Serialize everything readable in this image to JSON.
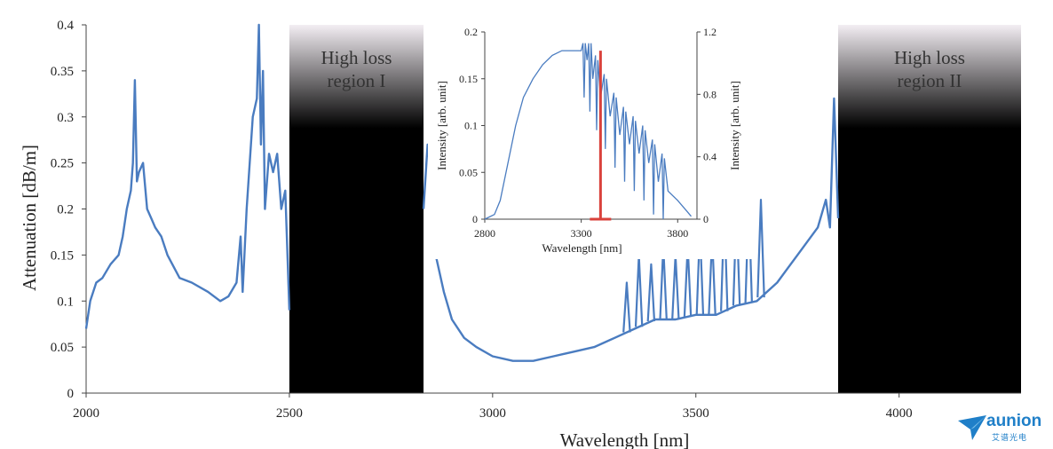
{
  "chart_data": [
    {
      "type": "line",
      "title": "",
      "xlabel": "Wavelength [nm]",
      "ylabel": "Attenuation [dB/m]",
      "xlim": [
        2000,
        4300
      ],
      "ylim": [
        0,
        0.4
      ],
      "xticks": [
        "2000",
        "2500",
        "3000",
        "3500",
        "4000"
      ],
      "yticks": [
        "0",
        "0.05",
        "0.1",
        "0.15",
        "0.2",
        "0.25",
        "0.3",
        "0.35",
        "0.4"
      ],
      "grid": false,
      "color": "#4a7cc0",
      "regions": [
        {
          "label_line1": "High loss",
          "label_line2": "region I",
          "x": [
            2500,
            2830
          ]
        },
        {
          "label_line1": "High loss",
          "label_line2": "region II",
          "x": [
            3850,
            4300
          ]
        }
      ],
      "series": [
        {
          "x": [
            2000,
            2010,
            2025,
            2040,
            2060,
            2080,
            2090,
            2100,
            2110,
            2115,
            2120,
            2125,
            2130,
            2140,
            2150,
            2160,
            2170,
            2185,
            2200,
            2230,
            2260,
            2300,
            2330,
            2350,
            2370,
            2380,
            2385,
            2395,
            2410,
            2420,
            2425,
            2430,
            2435,
            2440,
            2450,
            2460,
            2470,
            2480,
            2490,
            2500
          ],
          "y": [
            0.07,
            0.1,
            0.12,
            0.125,
            0.14,
            0.15,
            0.17,
            0.2,
            0.22,
            0.25,
            0.34,
            0.23,
            0.24,
            0.25,
            0.2,
            0.19,
            0.18,
            0.17,
            0.15,
            0.125,
            0.12,
            0.11,
            0.1,
            0.105,
            0.12,
            0.17,
            0.11,
            0.2,
            0.3,
            0.32,
            0.4,
            0.27,
            0.35,
            0.2,
            0.26,
            0.24,
            0.26,
            0.2,
            0.22,
            0.09
          ]
        },
        {
          "x": [
            2830,
            2840,
            2845,
            2850,
            2860,
            2880,
            2900,
            2930,
            2960,
            3000,
            3050,
            3100,
            3150,
            3200,
            3250,
            3300,
            3350,
            3400,
            3450,
            3500,
            3550,
            3600,
            3650,
            3700,
            3750,
            3800,
            3820,
            3830,
            3840,
            3850
          ],
          "y": [
            0.2,
            0.27,
            0.25,
            0.2,
            0.15,
            0.11,
            0.08,
            0.06,
            0.05,
            0.04,
            0.035,
            0.035,
            0.04,
            0.045,
            0.05,
            0.06,
            0.07,
            0.08,
            0.08,
            0.085,
            0.085,
            0.095,
            0.1,
            0.12,
            0.15,
            0.18,
            0.21,
            0.18,
            0.32,
            0.19
          ]
        }
      ],
      "oscillation_peaks": {
        "x": [
          3330,
          3360,
          3390,
          3420,
          3450,
          3480,
          3510,
          3540,
          3570,
          3600,
          3630,
          3660
        ],
        "y": [
          0.12,
          0.15,
          0.14,
          0.16,
          0.15,
          0.16,
          0.18,
          0.17,
          0.2,
          0.2,
          0.21,
          0.21
        ]
      }
    },
    {
      "type": "line",
      "title": "",
      "xlabel": "Wavelength  [nm]",
      "ylabel": "Intensity  [arb. unit]",
      "y2label": "Intensity  [arb. unit]",
      "xlim": [
        2800,
        3900
      ],
      "ylim": [
        0,
        0.2
      ],
      "y2lim": [
        0,
        1.2
      ],
      "xticks": [
        "2800",
        "3300",
        "3800"
      ],
      "yticks": [
        "0",
        "0.05",
        "0.1",
        "0.15",
        "0.2"
      ],
      "y2ticks": [
        "0",
        "0.4",
        "0.8",
        "1.2"
      ],
      "series": [
        {
          "color": "#4a7cc0",
          "x": [
            2800,
            2850,
            2880,
            2920,
            2960,
            3000,
            3050,
            3100,
            3150,
            3200,
            3250,
            3300,
            3330,
            3360,
            3400,
            3450,
            3500,
            3550,
            3600,
            3650,
            3700,
            3750,
            3800,
            3850,
            3870
          ],
          "y": [
            0,
            0.005,
            0.02,
            0.06,
            0.1,
            0.13,
            0.15,
            0.165,
            0.175,
            0.18,
            0.18,
            0.18,
            0.17,
            0.15,
            0.13,
            0.11,
            0.09,
            0.08,
            0.07,
            0.06,
            0.04,
            0.03,
            0.02,
            0.008,
            0.003
          ]
        },
        {
          "color": "#d9413b",
          "type": "stem",
          "x": 3400,
          "y2": 1.08
        }
      ]
    }
  ],
  "logo": {
    "name": "aunion",
    "subtext": "艾谱光电"
  }
}
